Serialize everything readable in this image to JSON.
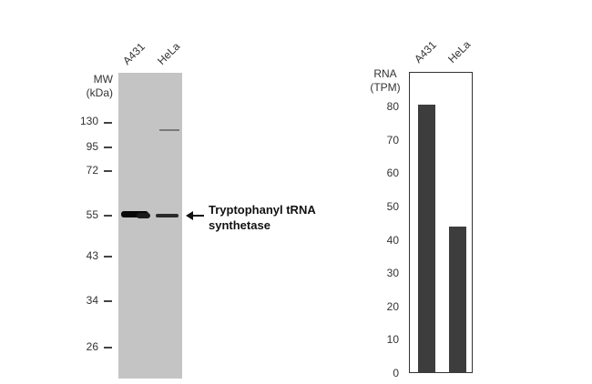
{
  "western_blot": {
    "lanes": [
      "A431",
      "HeLa"
    ],
    "mw_label": "MW",
    "mw_unit": "(kDa)",
    "mw_markers": [
      "130",
      "95",
      "72",
      "55",
      "43",
      "34",
      "26"
    ],
    "target_line1": "Tryptophanyl tRNA",
    "target_line2": "synthetase"
  },
  "chart_data": {
    "type": "bar",
    "categories": [
      "A431",
      "HeLa"
    ],
    "values": [
      80.5,
      44
    ],
    "ylabel_line1": "RNA",
    "ylabel_line2": "(TPM)",
    "yticks": [
      "0",
      "10",
      "20",
      "30",
      "40",
      "50",
      "60",
      "70",
      "80"
    ],
    "ylim": [
      0,
      80
    ],
    "bar_color": "#3d3d3d"
  }
}
